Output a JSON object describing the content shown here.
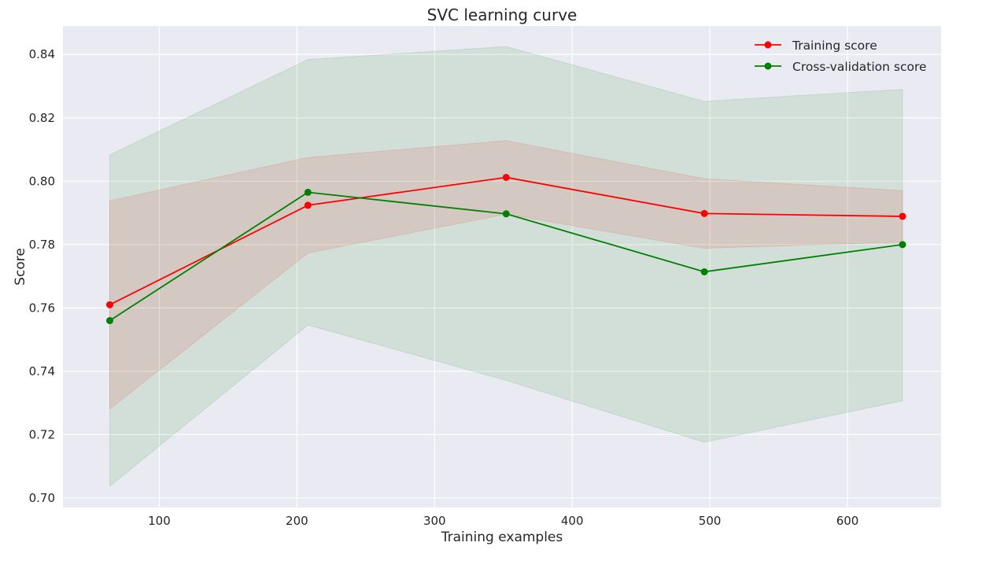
{
  "chart_data": {
    "type": "line",
    "title": "SVC learning curve",
    "xlabel": "Training examples",
    "ylabel": "Score",
    "x": [
      64,
      208,
      352,
      496,
      640
    ],
    "xlim": [
      30,
      668
    ],
    "ylim": [
      0.697,
      0.849
    ],
    "xticks": [
      100,
      200,
      300,
      400,
      500,
      600
    ],
    "yticks": [
      0.7,
      0.72,
      0.74,
      0.76,
      0.78,
      0.8,
      0.82,
      0.84
    ],
    "grid": true,
    "legend_position": "top-right",
    "series": [
      {
        "name": "Training score",
        "color": "#ff0000",
        "marker": "circle",
        "values": [
          0.761,
          0.7924,
          0.8012,
          0.7898,
          0.7889
        ],
        "band_lower": [
          0.7281,
          0.7773,
          0.7896,
          0.7788,
          0.7808
        ],
        "band_upper": [
          0.7938,
          0.8075,
          0.8128,
          0.8008,
          0.797
        ]
      },
      {
        "name": "Cross-validation score",
        "color": "#008000",
        "marker": "circle",
        "values": [
          0.756,
          0.7965,
          0.7897,
          0.7714,
          0.78
        ],
        "band_lower": [
          0.7037,
          0.7546,
          0.7371,
          0.7176,
          0.7307
        ],
        "band_upper": [
          0.8083,
          0.8384,
          0.8425,
          0.8252,
          0.829
        ]
      }
    ]
  },
  "legend_labels": [
    "Training score",
    "Cross-validation score"
  ]
}
